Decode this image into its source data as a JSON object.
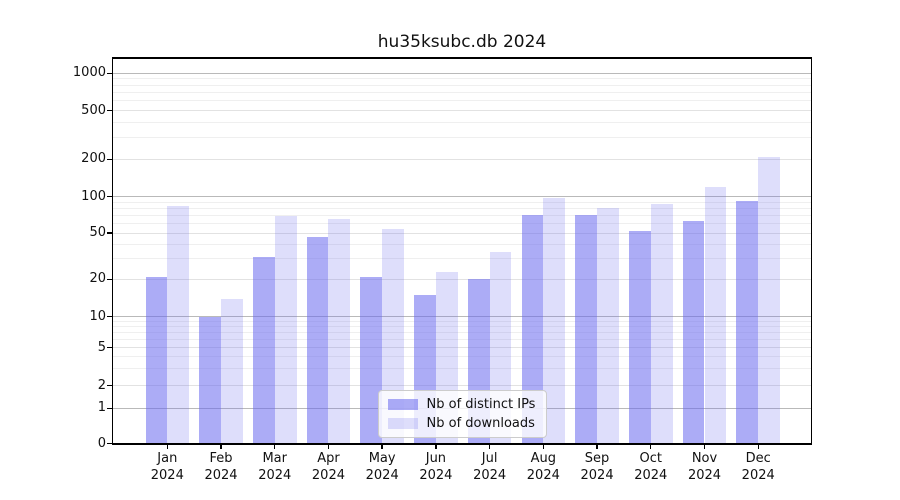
{
  "title": "hu35ksubc.db 2024",
  "legend": {
    "items": [
      {
        "label": "Nb of distinct IPs",
        "color": "rgba(103,103,238,0.55)"
      },
      {
        "label": "Nb of downloads",
        "color": "rgba(103,103,238,0.22)"
      }
    ]
  },
  "chart_data": {
    "type": "bar",
    "title": "hu35ksubc.db 2024",
    "categories": [
      "Jan 2024",
      "Feb 2024",
      "Mar 2024",
      "Apr 2024",
      "May 2024",
      "Jun 2024",
      "Jul 2024",
      "Aug 2024",
      "Sep 2024",
      "Oct 2024",
      "Nov 2024",
      "Dec 2024"
    ],
    "series": [
      {
        "name": "Nb of distinct IPs",
        "color": "rgba(103,103,238,0.55)",
        "values": [
          21,
          10,
          31,
          46,
          21,
          15,
          20,
          71,
          70,
          52,
          63,
          93
        ]
      },
      {
        "name": "Nb of downloads",
        "color": "rgba(103,103,238,0.22)",
        "values": [
          84,
          14,
          69,
          65,
          54,
          23,
          34,
          98,
          81,
          87,
          120,
          210
        ]
      }
    ],
    "ylabel": "",
    "xlabel": "",
    "yticks": [
      0,
      1,
      2,
      5,
      10,
      20,
      50,
      100,
      200,
      500,
      1000
    ],
    "ylim": [
      0,
      1350
    ],
    "yscale": "log-like with linear segment near zero",
    "grid": true,
    "legend_position": "lower center"
  },
  "colors": {
    "bar_distinct_ips": "rgba(103,103,238,0.55)",
    "bar_downloads": "rgba(103,103,238,0.22)",
    "grid_major": "#b9b9b9",
    "grid_mid": "#e2e2e2",
    "grid_minor": "#efefef",
    "axis": "#000000"
  }
}
